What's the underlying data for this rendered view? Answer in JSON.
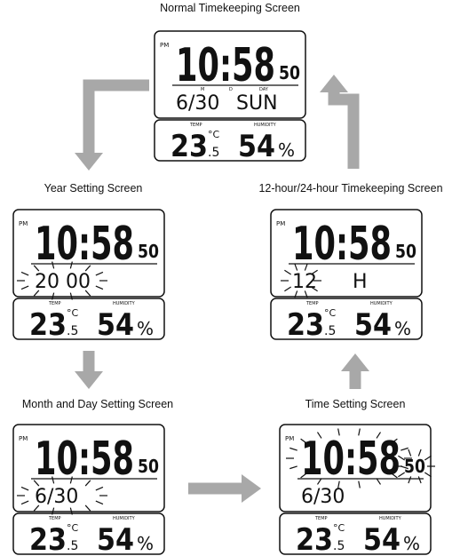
{
  "screens": [
    {
      "title": "Normal Timekeeping Screen",
      "pm": "PM",
      "time": "10:58",
      "seconds": "50",
      "row_labels": [
        "M",
        "D",
        "DAY"
      ],
      "date": "6/30",
      "weekday": "SUN",
      "temp_label": "TEMP",
      "humidity_label": "HUMIDITY",
      "temp": "23",
      "temp_decimal": ".5",
      "temp_unit": "°C",
      "humidity": "54",
      "humidity_unit": "%"
    },
    {
      "title": "Year Setting Screen",
      "pm": "PM",
      "time": "10:58",
      "seconds": "50",
      "date": "20 00",
      "temp_label": "TEMP",
      "humidity_label": "HUMIDITY",
      "temp": "23",
      "temp_decimal": ".5",
      "temp_unit": "°C",
      "humidity": "54",
      "humidity_unit": "%"
    },
    {
      "title": "12-hour/24-hour Timekeeping Screen",
      "pm": "PM",
      "time": "10:58",
      "seconds": "50",
      "date": "12",
      "weekday": "H",
      "temp_label": "TEMP",
      "humidity_label": "HUMIDITY",
      "temp": "23",
      "temp_decimal": ".5",
      "temp_unit": "°C",
      "humidity": "54",
      "humidity_unit": "%"
    },
    {
      "title": "Month and Day Setting Screen",
      "pm": "PM",
      "time": "10:58",
      "seconds": "50",
      "date": "6/30",
      "temp_label": "TEMP",
      "humidity_label": "HUMIDITY",
      "temp": "23",
      "temp_decimal": ".5",
      "temp_unit": "°C",
      "humidity": "54",
      "humidity_unit": "%"
    },
    {
      "title": "Time Setting Screen",
      "pm": "PM",
      "time": "10:58",
      "seconds": "50",
      "date": "6/30",
      "temp_label": "TEMP",
      "humidity_label": "HUMIDITY",
      "temp": "23",
      "temp_decimal": ".5",
      "temp_unit": "°C",
      "humidity": "54",
      "humidity_unit": "%"
    }
  ]
}
